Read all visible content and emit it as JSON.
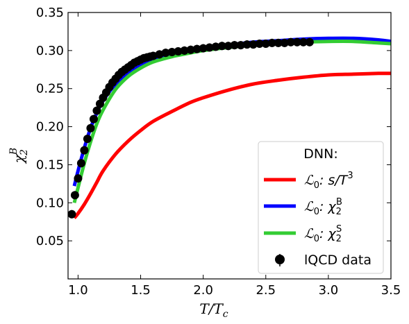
{
  "chart_data": {
    "type": "line",
    "xlabel_main": "T/T",
    "xlabel_sub": "c",
    "ylabel_main": "χ",
    "ylabel_sub": "2",
    "ylabel_sup": "B",
    "xlim": [
      0.92,
      3.5
    ],
    "ylim": [
      0.0,
      0.35
    ],
    "x_ticks": [
      "1.0",
      "1.5",
      "2.0",
      "2.5",
      "3.0",
      "3.5"
    ],
    "y_ticks": [
      "0.05",
      "0.10",
      "0.15",
      "0.20",
      "0.25",
      "0.30",
      "0.35"
    ],
    "grid": false,
    "legend_position": "lower-right",
    "legend": {
      "title": "DNN:",
      "entries": [
        {
          "prefix": "ℒ",
          "sub": "0",
          "rest": ": s/T",
          "sup": "3"
        },
        {
          "prefix": "ℒ",
          "sub": "0",
          "rest": ": χ",
          "sub2": "2",
          "sup": "B"
        },
        {
          "prefix": "ℒ",
          "sub": "0",
          "rest": ": χ",
          "sub2": "2",
          "sup": "S"
        },
        {
          "text": "lQCD data"
        }
      ]
    },
    "series": [
      {
        "color": "#ff0000",
        "x": [
          0.97,
          1.0,
          1.05,
          1.1,
          1.15,
          1.2,
          1.3,
          1.4,
          1.5,
          1.6,
          1.75,
          1.9,
          2.0,
          2.2,
          2.4,
          2.6,
          2.8,
          3.0,
          3.2,
          3.4,
          3.5
        ],
        "y": [
          0.08,
          0.086,
          0.098,
          0.112,
          0.127,
          0.142,
          0.164,
          0.181,
          0.195,
          0.207,
          0.22,
          0.232,
          0.238,
          0.248,
          0.256,
          0.261,
          0.265,
          0.268,
          0.269,
          0.27,
          0.27
        ]
      },
      {
        "color": "#0000ff",
        "x": [
          0.97,
          1.0,
          1.05,
          1.1,
          1.15,
          1.2,
          1.3,
          1.4,
          1.5,
          1.6,
          1.75,
          1.9,
          2.0,
          2.2,
          2.4,
          2.6,
          2.8,
          3.0,
          3.2,
          3.4,
          3.5
        ],
        "y": [
          0.122,
          0.142,
          0.172,
          0.198,
          0.218,
          0.234,
          0.256,
          0.27,
          0.28,
          0.287,
          0.294,
          0.299,
          0.302,
          0.307,
          0.311,
          0.313,
          0.315,
          0.316,
          0.316,
          0.314,
          0.312
        ]
      },
      {
        "color": "#33cc33",
        "x": [
          0.97,
          1.0,
          1.05,
          1.1,
          1.15,
          1.2,
          1.3,
          1.4,
          1.5,
          1.6,
          1.75,
          1.9,
          2.0,
          2.2,
          2.4,
          2.6,
          2.8,
          3.0,
          3.2,
          3.4,
          3.5
        ],
        "y": [
          0.1,
          0.12,
          0.152,
          0.18,
          0.204,
          0.222,
          0.249,
          0.266,
          0.277,
          0.285,
          0.292,
          0.297,
          0.3,
          0.304,
          0.307,
          0.309,
          0.311,
          0.312,
          0.312,
          0.31,
          0.309
        ]
      }
    ],
    "lqcd_data": {
      "color": "#000000",
      "x": [
        0.95,
        0.975,
        1.0,
        1.025,
        1.05,
        1.075,
        1.1,
        1.125,
        1.15,
        1.175,
        1.2,
        1.225,
        1.25,
        1.275,
        1.3,
        1.325,
        1.35,
        1.375,
        1.4,
        1.425,
        1.45,
        1.475,
        1.5,
        1.525,
        1.55,
        1.575,
        1.6,
        1.65,
        1.7,
        1.75,
        1.8,
        1.85,
        1.9,
        1.95,
        2.0,
        2.05,
        2.1,
        2.15,
        2.2,
        2.25,
        2.3,
        2.35,
        2.4,
        2.45,
        2.5,
        2.55,
        2.6,
        2.65,
        2.7,
        2.75,
        2.8,
        2.85
      ],
      "y": [
        0.085,
        0.11,
        0.132,
        0.152,
        0.169,
        0.184,
        0.198,
        0.21,
        0.221,
        0.23,
        0.238,
        0.245,
        0.252,
        0.258,
        0.263,
        0.268,
        0.272,
        0.275,
        0.278,
        0.281,
        0.284,
        0.286,
        0.288,
        0.29,
        0.291,
        0.292,
        0.293,
        0.295,
        0.297,
        0.298,
        0.299,
        0.3,
        0.301,
        0.302,
        0.303,
        0.304,
        0.305,
        0.306,
        0.306,
        0.307,
        0.307,
        0.308,
        0.308,
        0.309,
        0.309,
        0.31,
        0.31,
        0.31,
        0.311,
        0.311,
        0.311,
        0.311
      ]
    }
  }
}
